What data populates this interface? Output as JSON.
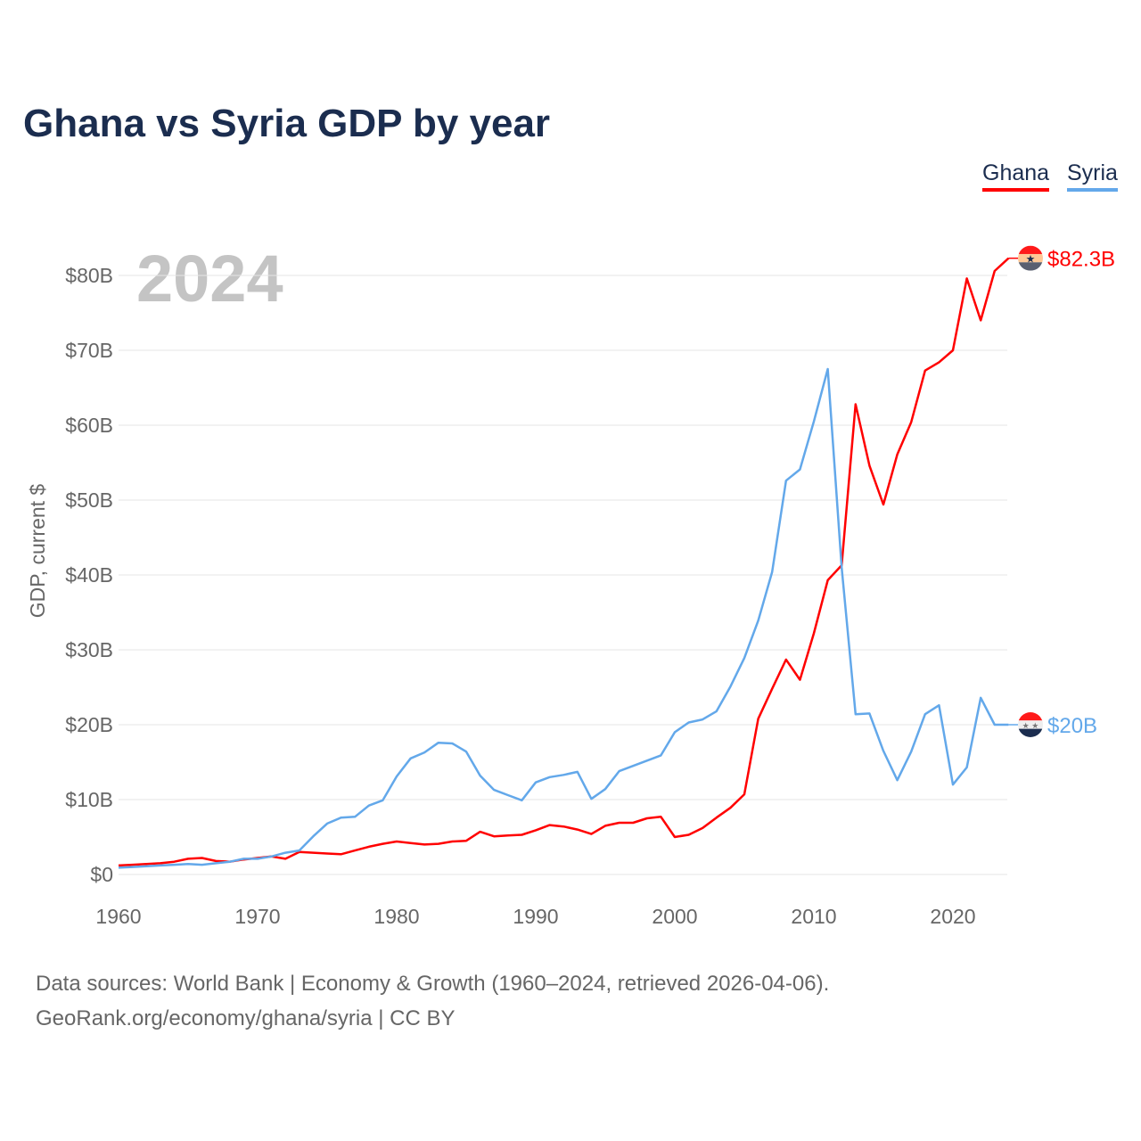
{
  "title": "Ghana vs Syria GDP by year",
  "legend": [
    "Ghana",
    "Syria"
  ],
  "year_label": "2024",
  "source_line1": "Data sources: World Bank | Economy & Growth (1960–2024, retrieved 2026-04-06).",
  "source_line2": "GeoRank.org/economy/ghana/syria | CC BY",
  "chart_data": {
    "type": "line",
    "title": "Ghana vs Syria GDP by year",
    "xlabel": "",
    "ylabel": "GDP, current $",
    "xlim": [
      1960,
      2024
    ],
    "ylim": [
      0,
      85
    ],
    "xticks": [
      1960,
      1970,
      1980,
      1990,
      2000,
      2010,
      2020
    ],
    "yticks": [
      0,
      10,
      20,
      30,
      40,
      50,
      60,
      70,
      80
    ],
    "ytick_labels": [
      "$0",
      "$10B",
      "$20B",
      "$30B",
      "$40B",
      "$50B",
      "$60B",
      "$70B",
      "$80B"
    ],
    "grid": true,
    "legend_position": "top-right",
    "x_start": 1960,
    "series": [
      {
        "name": "Ghana",
        "color": "#ff0000",
        "end_label": "$82.3B",
        "values": [
          1.2,
          1.3,
          1.4,
          1.5,
          1.7,
          2.1,
          2.2,
          1.8,
          1.7,
          2.0,
          2.2,
          2.4,
          2.1,
          3.0,
          2.9,
          2.8,
          2.7,
          3.2,
          3.7,
          4.1,
          4.4,
          4.2,
          4.0,
          4.1,
          4.4,
          4.5,
          5.7,
          5.1,
          5.2,
          5.3,
          5.9,
          6.6,
          6.4,
          6.0,
          5.4,
          6.5,
          6.9,
          6.9,
          7.5,
          7.7,
          5.0,
          5.3,
          6.2,
          7.6,
          8.9,
          10.7,
          20.8,
          24.8,
          28.7,
          26.0,
          32.2,
          39.3,
          41.3,
          62.8,
          54.6,
          49.4,
          56.1,
          60.4,
          67.3,
          68.4,
          70.0,
          79.6,
          74.0,
          80.6,
          82.3
        ]
      },
      {
        "name": "Syria",
        "color": "#63a8ea",
        "end_label": "$20B",
        "values": [
          0.9,
          1.0,
          1.1,
          1.2,
          1.3,
          1.4,
          1.3,
          1.5,
          1.7,
          2.1,
          2.1,
          2.4,
          2.9,
          3.2,
          5.1,
          6.8,
          7.6,
          7.7,
          9.2,
          9.9,
          13.1,
          15.5,
          16.3,
          17.6,
          17.5,
          16.4,
          13.2,
          11.3,
          10.6,
          9.9,
          12.3,
          13.0,
          13.3,
          13.7,
          10.1,
          11.4,
          13.8,
          14.5,
          15.2,
          15.9,
          19.0,
          20.3,
          20.7,
          21.8,
          25.1,
          28.9,
          33.9,
          40.4,
          52.6,
          54.1,
          60.5,
          67.5,
          41.0,
          21.4,
          21.5,
          16.5,
          12.6,
          16.4,
          21.4,
          22.6,
          12.0,
          14.3,
          23.6,
          20.0,
          20.0
        ]
      }
    ]
  }
}
